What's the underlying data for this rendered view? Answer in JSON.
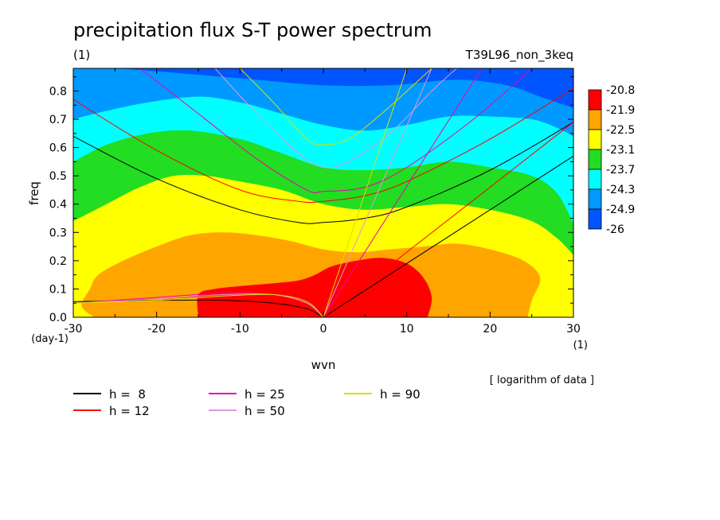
{
  "chart_data": {
    "type": "heatmap",
    "title": "precipitation flux S-T power spectrum",
    "subtitle_left": "(1)",
    "subtitle_right": "T39L96_non_3keq",
    "xlabel": "wvn",
    "ylabel": "freq",
    "x_unit": "(1)",
    "y_unit": "(day-1)",
    "note": "[ logarithm of data ]",
    "xlim": [
      -30,
      30
    ],
    "ylim": [
      0,
      0.88
    ],
    "x_ticks": [
      "-30",
      "-20",
      "-10",
      "0",
      "10",
      "20",
      "30"
    ],
    "y_ticks": [
      "0.0",
      "0.1",
      "0.2",
      "0.3",
      "0.4",
      "0.5",
      "0.6",
      "0.7",
      "0.8"
    ],
    "colorbar": {
      "levels": [
        "-20.8",
        "-21.9",
        "-22.5",
        "-23.1",
        "-23.7",
        "-24.3",
        "-24.9",
        "-26"
      ],
      "colors": [
        "#ff0000",
        "#ffa500",
        "#ffff00",
        "#22dd22",
        "#00ffff",
        "#0099ff",
        "#0055ff"
      ]
    },
    "filled_regions": [
      {
        "name": "region-below-minus26",
        "color": "#0055ff",
        "level": "-26 to -24.9",
        "boundary": [
          [
            -30,
            0.88
          ],
          [
            30,
            0.88
          ],
          [
            30,
            0
          ]
        ]
      },
      {
        "name": "region-24.9",
        "color": "#0099ff",
        "level": "-24.9 to -24.3",
        "boundary": [
          [
            -30,
            0.88
          ],
          [
            -25,
            0.88
          ],
          [
            -16,
            0.86
          ],
          [
            -8,
            0.84
          ],
          [
            0,
            0.82
          ],
          [
            8,
            0.82
          ],
          [
            16,
            0.84
          ],
          [
            22,
            0.82
          ],
          [
            26,
            0.78
          ],
          [
            30,
            0.74
          ],
          [
            30,
            0
          ],
          [
            -30,
            0
          ]
        ]
      },
      {
        "name": "region-24.3",
        "color": "#00ffff",
        "level": "-24.3 to -23.7",
        "boundary": [
          [
            -30,
            0.7
          ],
          [
            -26,
            0.73
          ],
          [
            -21,
            0.76
          ],
          [
            -15,
            0.78
          ],
          [
            -10,
            0.76
          ],
          [
            -5,
            0.72
          ],
          [
            0,
            0.68
          ],
          [
            5,
            0.66
          ],
          [
            10,
            0.68
          ],
          [
            15,
            0.71
          ],
          [
            20,
            0.71
          ],
          [
            25,
            0.7
          ],
          [
            28,
            0.67
          ],
          [
            30,
            0.64
          ],
          [
            30,
            0
          ],
          [
            -30,
            0
          ]
        ]
      },
      {
        "name": "region-23.7",
        "color": "#22dd22",
        "level": "-23.7 to -23.1",
        "boundary": [
          [
            -30,
            0.55
          ],
          [
            -26,
            0.61
          ],
          [
            -21,
            0.65
          ],
          [
            -16,
            0.66
          ],
          [
            -10,
            0.63
          ],
          [
            -5,
            0.58
          ],
          [
            0,
            0.53
          ],
          [
            5,
            0.52
          ],
          [
            10,
            0.53
          ],
          [
            15,
            0.55
          ],
          [
            20,
            0.53
          ],
          [
            25,
            0.5
          ],
          [
            28,
            0.44
          ],
          [
            30,
            0.33
          ],
          [
            30,
            0
          ],
          [
            -30,
            0
          ]
        ]
      },
      {
        "name": "region-23.1",
        "color": "#ffff00",
        "level": "-23.1 to -22.5",
        "boundary": [
          [
            -30,
            0.34
          ],
          [
            -26,
            0.4
          ],
          [
            -22,
            0.46
          ],
          [
            -18,
            0.5
          ],
          [
            -14,
            0.5
          ],
          [
            -10,
            0.48
          ],
          [
            -5,
            0.45
          ],
          [
            0,
            0.4
          ],
          [
            5,
            0.38
          ],
          [
            10,
            0.39
          ],
          [
            15,
            0.4
          ],
          [
            20,
            0.38
          ],
          [
            25,
            0.34
          ],
          [
            28,
            0.28
          ],
          [
            30,
            0.22
          ],
          [
            30,
            0
          ],
          [
            -30,
            0
          ]
        ]
      },
      {
        "name": "region-22.5",
        "color": "#ffa500",
        "level": "-22.5 to -21.9",
        "boundary": [
          [
            -27.5,
            0
          ],
          [
            -29,
            0.04
          ],
          [
            -28,
            0.1
          ],
          [
            -27,
            0.15
          ],
          [
            -24,
            0.2
          ],
          [
            -20,
            0.25
          ],
          [
            -16,
            0.29
          ],
          [
            -12,
            0.3
          ],
          [
            -8,
            0.29
          ],
          [
            -4,
            0.27
          ],
          [
            0,
            0.24
          ],
          [
            4,
            0.23
          ],
          [
            8,
            0.24
          ],
          [
            12,
            0.25
          ],
          [
            16,
            0.26
          ],
          [
            20,
            0.24
          ],
          [
            24,
            0.2
          ],
          [
            26,
            0.14
          ],
          [
            25,
            0.06
          ],
          [
            24.5,
            0
          ]
        ]
      },
      {
        "name": "region-21.9",
        "color": "#ff0000",
        "level": "above -21.9",
        "boundary": [
          [
            -15,
            0
          ],
          [
            -15,
            0.08
          ],
          [
            -13,
            0.1
          ],
          [
            -10,
            0.11
          ],
          [
            -6,
            0.12
          ],
          [
            -3,
            0.13
          ],
          [
            -1,
            0.15
          ],
          [
            1,
            0.18
          ],
          [
            4,
            0.2
          ],
          [
            7,
            0.21
          ],
          [
            10,
            0.19
          ],
          [
            12,
            0.14
          ],
          [
            13,
            0.07
          ],
          [
            12.5,
            0
          ]
        ]
      }
    ],
    "legend": [
      {
        "label": "h =  8",
        "color": "#000000"
      },
      {
        "label": "h = 12",
        "color": "#ff0000"
      },
      {
        "label": "h = 25",
        "color": "#ee00aa"
      },
      {
        "label": "h = 50",
        "color": "#dd99dd"
      },
      {
        "label": "h = 90",
        "color": "#dddd00"
      }
    ],
    "dispersion_curves": [
      {
        "h": "8",
        "color": "#000000",
        "kelvin_end": [
          30,
          0.57
        ],
        "ig_points": [
          [
            -30,
            0.64
          ],
          [
            -20,
            0.49
          ],
          [
            -10,
            0.38
          ],
          [
            -3,
            0.335
          ],
          [
            0,
            0.335
          ],
          [
            5,
            0.35
          ],
          [
            10,
            0.39
          ],
          [
            20,
            0.52
          ],
          [
            30,
            0.69
          ]
        ],
        "mrg_points": [
          [
            -30,
            0.055
          ],
          [
            -20,
            0.06
          ],
          [
            -12,
            0.06
          ],
          [
            -6,
            0.05
          ],
          [
            -2,
            0.03
          ],
          [
            0,
            0
          ]
        ]
      },
      {
        "h": "12",
        "color": "#ff0000",
        "kelvin_end": [
          30,
          0.69
        ],
        "ig_points": [
          [
            -30,
            0.77
          ],
          [
            -20,
            0.59
          ],
          [
            -10,
            0.45
          ],
          [
            -3,
            0.41
          ],
          [
            0,
            0.41
          ],
          [
            5,
            0.43
          ],
          [
            10,
            0.48
          ],
          [
            20,
            0.63
          ],
          [
            30,
            0.81
          ]
        ],
        "mrg_points": [
          [
            -30,
            0.05
          ],
          [
            -20,
            0.065
          ],
          [
            -12,
            0.075
          ],
          [
            -6,
            0.065
          ],
          [
            -2,
            0.04
          ],
          [
            0,
            0
          ]
        ]
      },
      {
        "h": "25",
        "color": "#ee00aa",
        "kelvin_end": [
          19,
          0.88
        ],
        "ig_points": [
          [
            -22,
            0.88
          ],
          [
            -15,
            0.72
          ],
          [
            -8,
            0.56
          ],
          [
            -2,
            0.45
          ],
          [
            0,
            0.445
          ],
          [
            5,
            0.46
          ],
          [
            10,
            0.53
          ],
          [
            18,
            0.7
          ],
          [
            25,
            0.88
          ]
        ],
        "mrg_points": [
          [
            -30,
            0.05
          ],
          [
            -20,
            0.07
          ],
          [
            -12,
            0.085
          ],
          [
            -6,
            0.08
          ],
          [
            -2,
            0.05
          ],
          [
            0,
            0
          ]
        ]
      },
      {
        "h": "50",
        "color": "#dd99dd",
        "kelvin_end": [
          13,
          0.88
        ],
        "ig_points": [
          [
            -13,
            0.88
          ],
          [
            -8,
            0.72
          ],
          [
            -3,
            0.58
          ],
          [
            0,
            0.53
          ],
          [
            3,
            0.55
          ],
          [
            8,
            0.65
          ],
          [
            13,
            0.8
          ],
          [
            16,
            0.88
          ]
        ],
        "mrg_points": [
          [
            -30,
            0.05
          ],
          [
            -20,
            0.065
          ],
          [
            -12,
            0.08
          ],
          [
            -6,
            0.08
          ],
          [
            -2,
            0.05
          ],
          [
            0,
            0
          ]
        ]
      },
      {
        "h": "90",
        "color": "#dddd00",
        "kelvin_end": [
          10,
          0.88
        ],
        "ig_points": [
          [
            -10,
            0.88
          ],
          [
            -6,
            0.76
          ],
          [
            -2,
            0.63
          ],
          [
            0,
            0.61
          ],
          [
            3,
            0.63
          ],
          [
            7,
            0.72
          ],
          [
            13,
            0.88
          ]
        ],
        "mrg_points": [
          [
            -30,
            0.05
          ],
          [
            -20,
            0.06
          ],
          [
            -12,
            0.075
          ],
          [
            -6,
            0.08
          ],
          [
            -2,
            0.055
          ],
          [
            0,
            0
          ]
        ]
      }
    ]
  }
}
